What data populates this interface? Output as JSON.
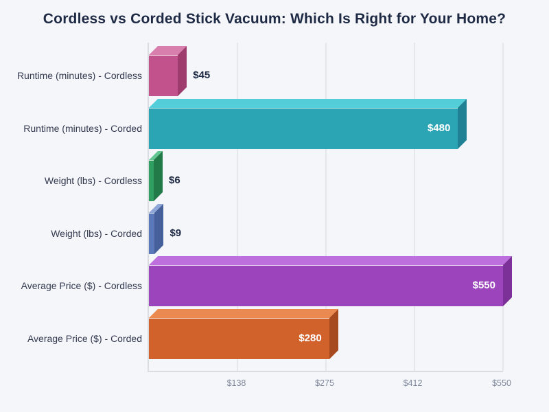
{
  "title": "Cordless vs Corded Stick Vacuum: Which Is Right for Your Home?",
  "chart_data": {
    "type": "bar",
    "orientation": "horizontal",
    "style": "3d",
    "title": "Cordless vs Corded Stick Vacuum: Which Is Right for Your Home?",
    "xlabel": "",
    "ylabel": "",
    "xlim": [
      0,
      550
    ],
    "grid": true,
    "legend": "none",
    "x_ticks": [
      {
        "value": 138,
        "label": "$138"
      },
      {
        "value": 275,
        "label": "$275"
      },
      {
        "value": 412,
        "label": "$412"
      },
      {
        "value": 550,
        "label": "$550"
      }
    ],
    "categories": [
      "Runtime (minutes) - Cordless",
      "Runtime (minutes) - Corded",
      "Weight (lbs) - Cordless",
      "Weight (lbs) - Corded",
      "Average Price ($) - Cordless",
      "Average Price ($) - Corded"
    ],
    "values": [
      45,
      480,
      6,
      9,
      550,
      280
    ],
    "bars": [
      {
        "category": "Runtime (minutes) - Cordless",
        "value": 45,
        "label": "$45",
        "label_position": "outside",
        "color_front": "#c2528b",
        "color_top": "#d87fae",
        "color_side": "#9e3c6d"
      },
      {
        "category": "Runtime (minutes) - Corded",
        "value": 480,
        "label": "$480",
        "label_position": "inside",
        "color_front": "#2ba4b4",
        "color_top": "#53ced9",
        "color_side": "#1f8193"
      },
      {
        "category": "Weight (lbs) - Cordless",
        "value": 6,
        "label": "$6",
        "label_position": "outside",
        "color_front": "#2f9e60",
        "color_top": "#63c592",
        "color_side": "#237a49"
      },
      {
        "category": "Weight (lbs) - Corded",
        "value": 9,
        "label": "$9",
        "label_position": "outside",
        "color_front": "#5b79b9",
        "color_top": "#8ea6d8",
        "color_side": "#45609a"
      },
      {
        "category": "Average Price ($) - Cordless",
        "value": 550,
        "label": "$550",
        "label_position": "inside",
        "color_front": "#9c44bc",
        "color_top": "#bc6fdd",
        "color_side": "#7b3198"
      },
      {
        "category": "Average Price ($) - Corded",
        "value": 280,
        "label": "$280",
        "label_position": "inside",
        "color_front": "#d2622b",
        "color_top": "#ea8a51",
        "color_side": "#a84a1f"
      }
    ]
  },
  "colors": {
    "background": "#f5f6fa",
    "title_text": "#1e2a44",
    "category_text": "#333a4f",
    "value_text_dark": "#1e2a44",
    "value_text_light": "#ffffff",
    "tick_text": "#7d8699",
    "gridline": "#e5e7ec",
    "axis_line": "#d9dce1"
  }
}
